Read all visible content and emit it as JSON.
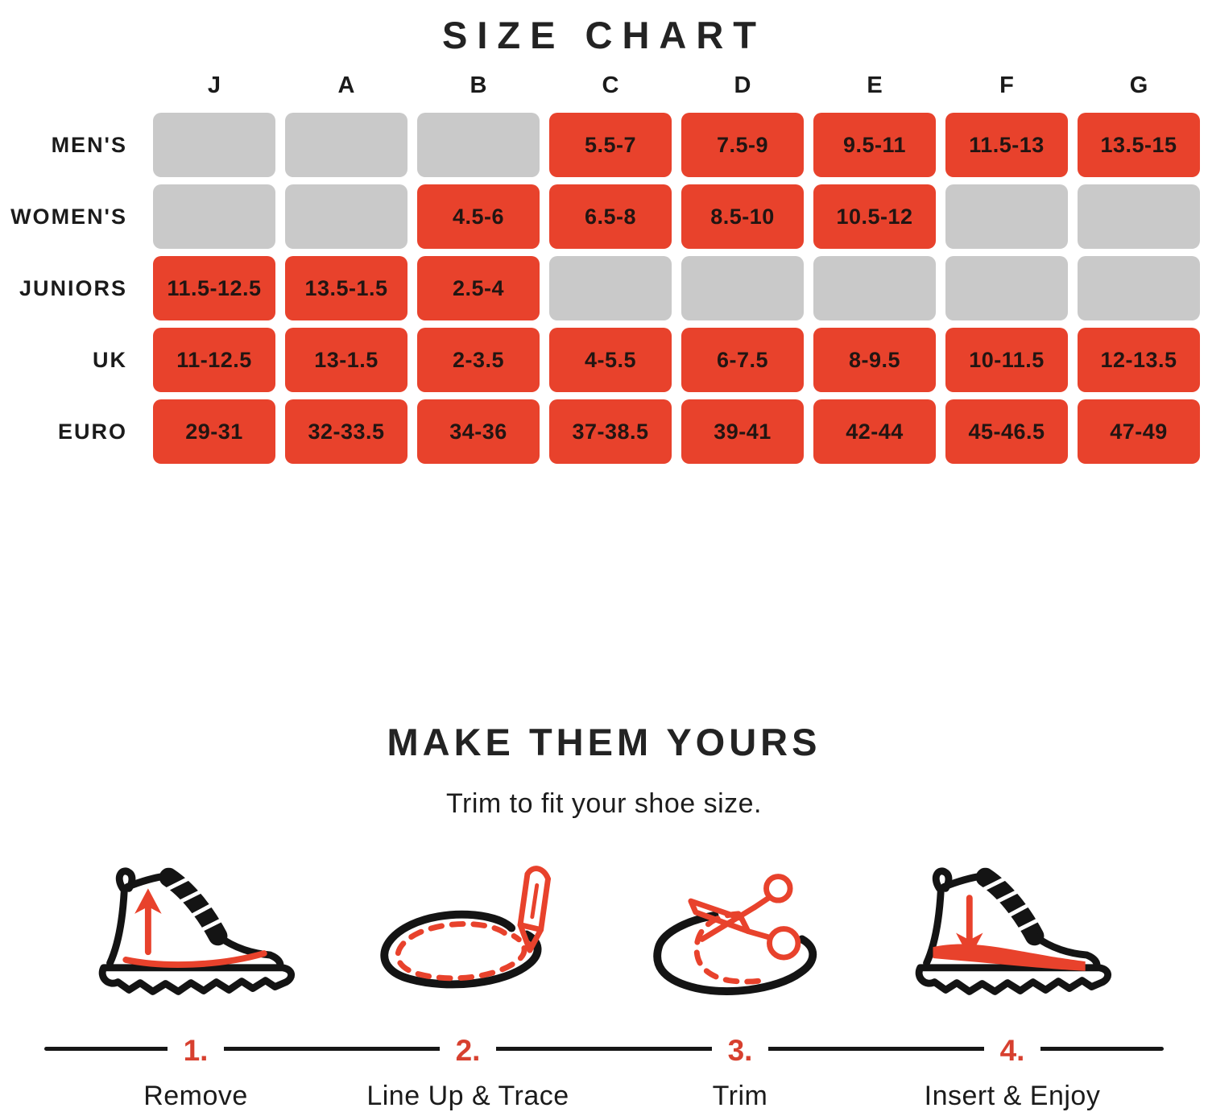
{
  "colors": {
    "accent_red": "#E8422C",
    "step_number_red": "#D7402F",
    "empty_gray": "#C9C9C9",
    "text_dark": "#1E1E1E",
    "line_black": "#161616"
  },
  "chart_data": {
    "type": "table",
    "title": "SIZE CHART",
    "columns": [
      "J",
      "A",
      "B",
      "C",
      "D",
      "E",
      "F",
      "G"
    ],
    "rows": [
      {
        "label": "MEN'S",
        "cells": [
          "",
          "",
          "",
          "5.5-7",
          "7.5-9",
          "9.5-11",
          "11.5-13",
          "13.5-15"
        ]
      },
      {
        "label": "WOMEN'S",
        "cells": [
          "",
          "",
          "4.5-6",
          "6.5-8",
          "8.5-10",
          "10.5-12",
          "",
          ""
        ]
      },
      {
        "label": "JUNIORS",
        "cells": [
          "11.5-12.5",
          "13.5-1.5",
          "2.5-4",
          "",
          "",
          "",
          "",
          ""
        ]
      },
      {
        "label": "UK",
        "cells": [
          "11-12.5",
          "13-1.5",
          "2-3.5",
          "4-5.5",
          "6-7.5",
          "8-9.5",
          "10-11.5",
          "12-13.5"
        ]
      },
      {
        "label": "EURO",
        "cells": [
          "29-31",
          "32-33.5",
          "34-36",
          "37-38.5",
          "39-41",
          "42-44",
          "45-46.5",
          "47-49"
        ]
      }
    ]
  },
  "instructions": {
    "title": "MAKE THEM YOURS",
    "subtitle": "Trim to fit your shoe size.",
    "steps": [
      {
        "number": "1.",
        "label": "Remove",
        "icon": "boot-remove-insole-icon"
      },
      {
        "number": "2.",
        "label": "Line Up & Trace",
        "icon": "insole-pencil-trace-icon"
      },
      {
        "number": "3.",
        "label": "Trim",
        "icon": "insole-scissors-trim-icon"
      },
      {
        "number": "4.",
        "label": "Insert & Enjoy",
        "icon": "boot-insert-insole-icon"
      }
    ]
  }
}
